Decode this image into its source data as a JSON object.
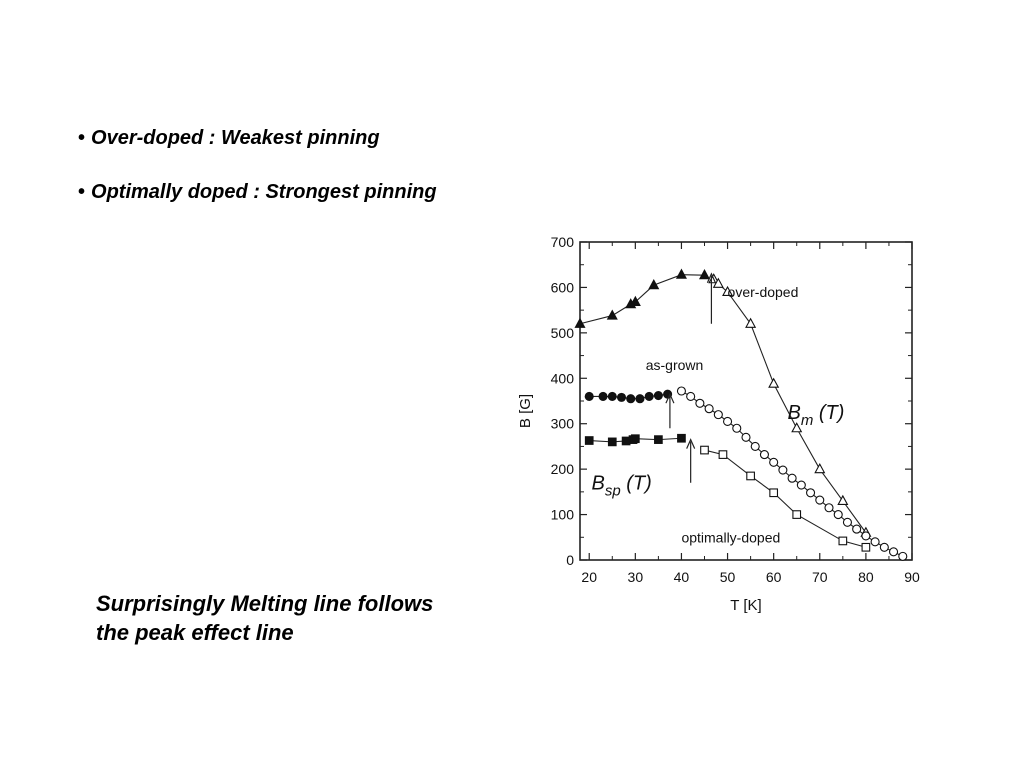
{
  "bullets": [
    "Over-doped : Weakest pinning",
    "Optimally doped : Strongest pinning"
  ],
  "bullet_symbol": "•",
  "caption_lines": [
    "Surprisingly Melting line follows",
    "the peak effect line"
  ],
  "chart_data": {
    "type": "scatter",
    "xlabel": "T [K]",
    "ylabel": "B  [G]",
    "xlim": [
      18,
      90
    ],
    "ylim": [
      0,
      700
    ],
    "xticks": [
      20,
      30,
      40,
      50,
      60,
      70,
      80,
      90
    ],
    "yticks": [
      0,
      100,
      200,
      300,
      400,
      500,
      600,
      700
    ],
    "grid": false,
    "series": [
      {
        "name": "over-doped",
        "marker": "filled-triangle",
        "line": true,
        "x": [
          18,
          25,
          29,
          30,
          34,
          40,
          45
        ],
        "y": [
          520,
          538,
          563,
          568,
          605,
          628,
          627
        ]
      },
      {
        "name": "over-doped",
        "marker": "open-triangle",
        "line": true,
        "x": [
          47,
          48,
          50,
          55,
          60,
          65,
          70,
          75,
          80
        ],
        "y": [
          618,
          608,
          590,
          520,
          388,
          290,
          200,
          130,
          60
        ]
      },
      {
        "name": "as-grown",
        "marker": "filled-circle",
        "line": true,
        "x": [
          20,
          23,
          25,
          27,
          29,
          31,
          33,
          35,
          37
        ],
        "y": [
          360,
          360,
          360,
          358,
          355,
          355,
          360,
          362,
          365
        ]
      },
      {
        "name": "as-grown",
        "marker": "open-circle",
        "line": true,
        "x": [
          40,
          42,
          44,
          46,
          48,
          50,
          52,
          54,
          56,
          58,
          60,
          62,
          64,
          66,
          68,
          70,
          72,
          74,
          76,
          78,
          80,
          82,
          84,
          86,
          88
        ],
        "y": [
          372,
          360,
          345,
          333,
          320,
          305,
          290,
          270,
          250,
          232,
          215,
          198,
          180,
          165,
          148,
          132,
          115,
          100,
          83,
          68,
          53,
          40,
          28,
          18,
          8
        ]
      },
      {
        "name": "optimally-doped",
        "marker": "filled-square",
        "line": true,
        "x": [
          20,
          25,
          28,
          29.5,
          30,
          35,
          40
        ],
        "y": [
          263,
          260,
          262,
          265,
          267,
          265,
          268
        ]
      },
      {
        "name": "optimally-doped",
        "marker": "open-square",
        "line": true,
        "x": [
          45,
          49,
          55,
          60,
          65,
          75,
          80
        ],
        "y": [
          242,
          232,
          185,
          148,
          100,
          42,
          28
        ]
      }
    ],
    "annotations": [
      {
        "text": "over-doped"
      },
      {
        "text": "as-grown"
      },
      {
        "text": "optimally-doped"
      },
      {
        "text": "B",
        "sub": "m",
        "tail": " (T)"
      },
      {
        "text": "B",
        "sub": "sp",
        "tail": " (T)"
      }
    ],
    "arrows": [
      {
        "x": 46.5,
        "y_from": 520,
        "y_to": 630
      },
      {
        "x": 37.5,
        "y_from": 290,
        "y_to": 365
      },
      {
        "x": 42.0,
        "y_from": 170,
        "y_to": 265
      }
    ]
  }
}
